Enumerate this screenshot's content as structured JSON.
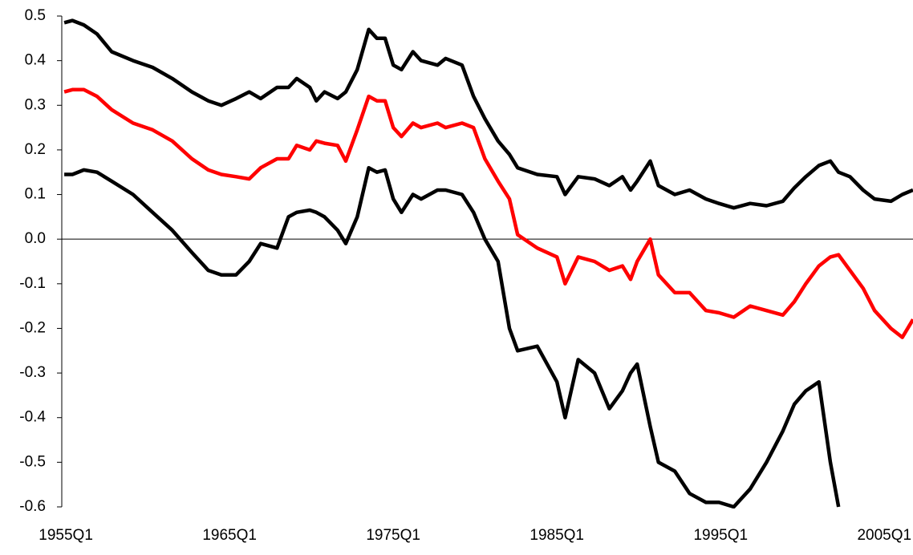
{
  "chart_data": {
    "type": "line",
    "x": [
      1954.9,
      1955.4,
      1956.1,
      1956.9,
      1957.8,
      1959.1,
      1960.3,
      1961.5,
      1962.7,
      1963.7,
      1964.5,
      1965.4,
      1966.2,
      1966.9,
      1967.9,
      1968.6,
      1969.1,
      1969.9,
      1970.3,
      1970.8,
      1971.6,
      1972.1,
      1972.8,
      1973.5,
      1974.0,
      1974.5,
      1975.0,
      1975.5,
      1976.2,
      1976.7,
      1977.7,
      1978.2,
      1979.2,
      1979.9,
      1980.6,
      1981.4,
      1982.1,
      1982.6,
      1983.8,
      1985.0,
      1985.5,
      1986.3,
      1987.3,
      1988.2,
      1989.0,
      1989.5,
      1989.9,
      1990.7,
      1991.2,
      1992.2,
      1993.1,
      1994.1,
      1994.9,
      1995.8,
      1996.8,
      1997.8,
      1998.8,
      1999.5,
      2000.2,
      2001.0,
      2001.7,
      2002.2,
      2002.9,
      2003.7,
      2004.4,
      2005.4,
      2006.1,
      2006.75
    ],
    "series": [
      {
        "color": "#000000",
        "values": [
          0.485,
          0.49,
          0.48,
          0.46,
          0.42,
          0.4,
          0.385,
          0.36,
          0.33,
          0.31,
          0.3,
          0.315,
          0.33,
          0.315,
          0.34,
          0.34,
          0.36,
          0.34,
          0.31,
          0.33,
          0.315,
          0.33,
          0.38,
          0.47,
          0.45,
          0.45,
          0.39,
          0.38,
          0.42,
          0.4,
          0.39,
          0.405,
          0.39,
          0.32,
          0.27,
          0.22,
          0.19,
          0.16,
          0.145,
          0.14,
          0.1,
          0.14,
          0.135,
          0.12,
          0.14,
          0.11,
          0.13,
          0.175,
          0.12,
          0.1,
          0.11,
          0.09,
          0.08,
          0.07,
          0.08,
          0.075,
          0.085,
          0.115,
          0.14,
          0.165,
          0.175,
          0.15,
          0.14,
          0.11,
          0.09,
          0.085,
          0.1,
          0.11
        ]
      },
      {
        "color": "#ff0000",
        "values": [
          0.33,
          0.335,
          0.335,
          0.32,
          0.29,
          0.26,
          0.245,
          0.22,
          0.18,
          0.155,
          0.145,
          0.14,
          0.135,
          0.16,
          0.18,
          0.18,
          0.21,
          0.2,
          0.22,
          0.215,
          0.21,
          0.175,
          0.245,
          0.32,
          0.31,
          0.31,
          0.25,
          0.23,
          0.26,
          0.25,
          0.26,
          0.25,
          0.26,
          0.25,
          0.18,
          0.13,
          0.09,
          0.01,
          -0.02,
          -0.04,
          -0.1,
          -0.04,
          -0.05,
          -0.07,
          -0.06,
          -0.09,
          -0.05,
          0,
          -0.08,
          -0.12,
          -0.12,
          -0.16,
          -0.165,
          -0.175,
          -0.15,
          -0.16,
          -0.17,
          -0.14,
          -0.1,
          -0.06,
          -0.04,
          -0.035,
          -0.07,
          -0.11,
          -0.16,
          -0.2,
          -0.22,
          -0.18
        ]
      },
      {
        "color": "#000000",
        "values": [
          0.145,
          0.145,
          0.155,
          0.15,
          0.13,
          0.1,
          0.06,
          0.02,
          -0.03,
          -0.07,
          -0.08,
          -0.08,
          -0.05,
          -0.01,
          -0.02,
          0.05,
          0.06,
          0.065,
          0.06,
          0.05,
          0.02,
          -0.01,
          0.05,
          0.16,
          0.15,
          0.155,
          0.09,
          0.06,
          0.1,
          0.09,
          0.11,
          0.11,
          0.1,
          0.06,
          0,
          -0.05,
          -0.2,
          -0.25,
          -0.24,
          -0.32,
          -0.4,
          -0.27,
          -0.3,
          -0.38,
          -0.34,
          -0.3,
          -0.28,
          -0.42,
          -0.5,
          -0.52,
          -0.57,
          -0.59,
          -0.59,
          -0.6,
          -0.56,
          -0.5,
          -0.43,
          -0.37,
          -0.34,
          -0.32,
          -0.5,
          -0.6,
          null,
          null,
          null,
          null,
          null,
          null
        ]
      }
    ],
    "xlim": [
      1954.75,
      2006.75
    ],
    "xticks": [
      {
        "value": 1955,
        "label": "1955Q1"
      },
      {
        "value": 1965,
        "label": "1965Q1"
      },
      {
        "value": 1975,
        "label": "1975Q1"
      },
      {
        "value": 1985,
        "label": "1985Q1"
      },
      {
        "value": 1995,
        "label": "1995Q1"
      },
      {
        "value": 2005,
        "label": "2005Q1"
      }
    ],
    "ylim": [
      -0.6,
      0.5
    ],
    "yticks": [
      0.5,
      0.4,
      0.3,
      0.2,
      0.1,
      {
        "value": 0,
        "label": "0.0"
      },
      -0.1,
      -0.2,
      -0.3,
      -0.4,
      -0.5,
      -0.6
    ],
    "grid": false
  }
}
